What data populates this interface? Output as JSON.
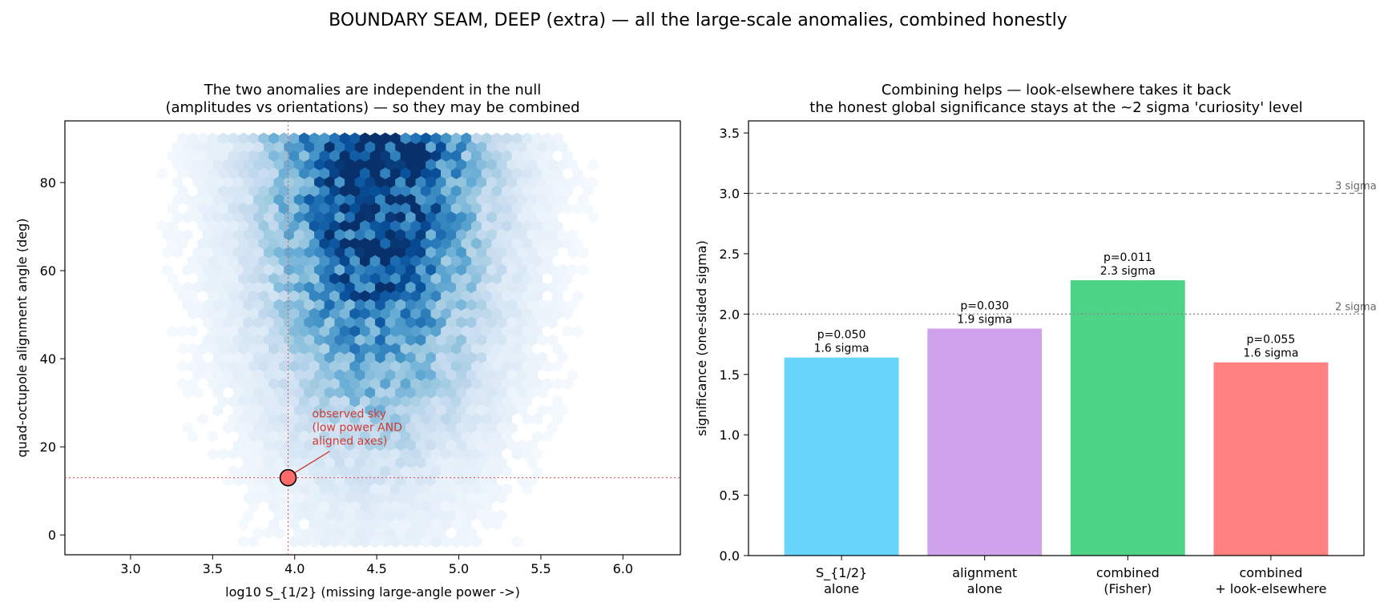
{
  "suptitle": "BOUNDARY SEAM, DEEP (extra) — all the large-scale anomalies, combined honestly",
  "chart_data": [
    {
      "type": "hexbin",
      "title_line1": "The two anomalies are independent in the null",
      "title_line2": "(amplitudes vs orientations) — so they may be combined",
      "xlabel": "log10  S_{1/2}   (missing large-angle power ->)",
      "ylabel": "quad-octupole alignment angle  (deg)",
      "xlim": [
        2.6,
        6.35
      ],
      "ylim": [
        -4.5,
        94
      ],
      "xticks": [
        "3.0",
        "3.5",
        "4.0",
        "4.5",
        "5.0",
        "5.5",
        "6.0"
      ],
      "yticks": [
        "0",
        "20",
        "40",
        "60",
        "80"
      ],
      "colormap": "Blues",
      "null_distribution": {
        "x_center": 4.5,
        "x_spread": 0.45,
        "density_peak_y": 90
      },
      "observed": {
        "x": 3.96,
        "y": 13
      },
      "observed_color": "#ff6b6b",
      "annotation_lines": [
        "observed sky",
        "(low power AND",
        "aligned axes)"
      ],
      "annotation_color": "#d03a35"
    },
    {
      "type": "bar",
      "title_line1": "Combining helps — look-elsewhere takes it back",
      "title_line2": "the honest global significance stays at the ~2 sigma 'curiosity' level",
      "ylabel": "significance  (one-sided sigma)",
      "ylim": [
        0,
        3.6
      ],
      "yticks": [
        "0.0",
        "0.5",
        "1.0",
        "1.5",
        "2.0",
        "2.5",
        "3.0",
        "3.5"
      ],
      "categories": [
        [
          "S_{1/2}",
          "alone"
        ],
        [
          "alignment",
          "alone"
        ],
        [
          "combined",
          "(Fisher)"
        ],
        [
          "combined",
          "+ look-elsewhere"
        ]
      ],
      "values": [
        1.64,
        1.88,
        2.28,
        1.6
      ],
      "bar_labels": [
        [
          "p=0.050",
          "1.6 sigma"
        ],
        [
          "p=0.030",
          "1.9 sigma"
        ],
        [
          "p=0.011",
          "2.3 sigma"
        ],
        [
          "p=0.055",
          "1.6 sigma"
        ]
      ],
      "colors": [
        "#6ad5fc",
        "#cea2ec",
        "#4dd486",
        "#ff8080"
      ],
      "reference_lines": [
        {
          "value": 3.0,
          "label": "3 sigma",
          "style": "dashed"
        },
        {
          "value": 2.0,
          "label": "2 sigma",
          "style": "dotted"
        }
      ]
    }
  ]
}
